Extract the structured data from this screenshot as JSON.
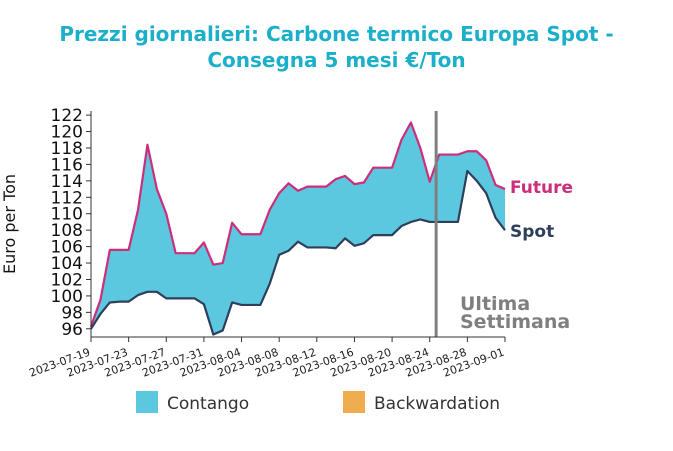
{
  "chart_data": {
    "type": "area",
    "title_line1": "Prezzi giornalieri: Carbone termico Europa Spot -",
    "title_line2": "Consegna 5 mesi €/Ton",
    "ylabel": "Euro per Ton",
    "xlabel": "",
    "ylim": [
      95,
      122.5
    ],
    "yticks": [
      96,
      98,
      100,
      102,
      104,
      106,
      108,
      110,
      112,
      114,
      116,
      118,
      120,
      122
    ],
    "xlim": [
      "2023-07-19",
      "2023-09-01"
    ],
    "xticks": [
      "2023-07-19",
      "2023-07-23",
      "2023-07-27",
      "2023-07-31",
      "2023-08-04",
      "2023-08-08",
      "2023-08-12",
      "2023-08-16",
      "2023-08-20",
      "2023-08-24",
      "2023-08-28",
      "2023-09-01"
    ],
    "series": [
      {
        "name": "Future",
        "color": "#cc2e7a",
        "points": [
          [
            "2023-07-19",
            96.3
          ],
          [
            "2023-07-20",
            99.5
          ],
          [
            "2023-07-21",
            105.6
          ],
          [
            "2023-07-22",
            105.6
          ],
          [
            "2023-07-23",
            105.6
          ],
          [
            "2023-07-24",
            110.5
          ],
          [
            "2023-07-25",
            118.4
          ],
          [
            "2023-07-26",
            113.0
          ],
          [
            "2023-07-27",
            110.0
          ],
          [
            "2023-07-28",
            105.2
          ],
          [
            "2023-07-29",
            105.2
          ],
          [
            "2023-07-30",
            105.2
          ],
          [
            "2023-07-31",
            106.5
          ],
          [
            "2023-08-01",
            103.8
          ],
          [
            "2023-08-02",
            104.0
          ],
          [
            "2023-08-03",
            108.9
          ],
          [
            "2023-08-04",
            107.5
          ],
          [
            "2023-08-05",
            107.5
          ],
          [
            "2023-08-06",
            107.5
          ],
          [
            "2023-08-07",
            110.5
          ],
          [
            "2023-08-08",
            112.5
          ],
          [
            "2023-08-09",
            113.7
          ],
          [
            "2023-08-10",
            112.8
          ],
          [
            "2023-08-11",
            113.3
          ],
          [
            "2023-08-12",
            113.3
          ],
          [
            "2023-08-13",
            113.3
          ],
          [
            "2023-08-14",
            114.2
          ],
          [
            "2023-08-15",
            114.6
          ],
          [
            "2023-08-16",
            113.6
          ],
          [
            "2023-08-17",
            113.8
          ],
          [
            "2023-08-18",
            115.6
          ],
          [
            "2023-08-19",
            115.6
          ],
          [
            "2023-08-20",
            115.6
          ],
          [
            "2023-08-21",
            119.0
          ],
          [
            "2023-08-22",
            121.1
          ],
          [
            "2023-08-23",
            118.0
          ],
          [
            "2023-08-24",
            113.9
          ],
          [
            "2023-08-25",
            117.2
          ],
          [
            "2023-08-26",
            117.2
          ],
          [
            "2023-08-27",
            117.2
          ],
          [
            "2023-08-28",
            117.6
          ],
          [
            "2023-08-29",
            117.6
          ],
          [
            "2023-08-30",
            116.5
          ],
          [
            "2023-08-31",
            113.5
          ],
          [
            "2023-09-01",
            113.0
          ]
        ]
      },
      {
        "name": "Spot",
        "color": "#2e3f5c",
        "points": [
          [
            "2023-07-19",
            96.0
          ],
          [
            "2023-07-20",
            97.8
          ],
          [
            "2023-07-21",
            99.2
          ],
          [
            "2023-07-22",
            99.3
          ],
          [
            "2023-07-23",
            99.3
          ],
          [
            "2023-07-24",
            100.1
          ],
          [
            "2023-07-25",
            100.5
          ],
          [
            "2023-07-26",
            100.5
          ],
          [
            "2023-07-27",
            99.7
          ],
          [
            "2023-07-28",
            99.7
          ],
          [
            "2023-07-29",
            99.7
          ],
          [
            "2023-07-30",
            99.7
          ],
          [
            "2023-07-31",
            99.0
          ],
          [
            "2023-08-01",
            95.3
          ],
          [
            "2023-08-02",
            95.8
          ],
          [
            "2023-08-03",
            99.2
          ],
          [
            "2023-08-04",
            98.9
          ],
          [
            "2023-08-05",
            98.9
          ],
          [
            "2023-08-06",
            98.9
          ],
          [
            "2023-08-07",
            101.5
          ],
          [
            "2023-08-08",
            105.0
          ],
          [
            "2023-08-09",
            105.5
          ],
          [
            "2023-08-10",
            106.6
          ],
          [
            "2023-08-11",
            105.9
          ],
          [
            "2023-08-12",
            105.9
          ],
          [
            "2023-08-13",
            105.9
          ],
          [
            "2023-08-14",
            105.8
          ],
          [
            "2023-08-15",
            107.0
          ],
          [
            "2023-08-16",
            106.1
          ],
          [
            "2023-08-17",
            106.4
          ],
          [
            "2023-08-18",
            107.4
          ],
          [
            "2023-08-19",
            107.4
          ],
          [
            "2023-08-20",
            107.4
          ],
          [
            "2023-08-21",
            108.5
          ],
          [
            "2023-08-22",
            109.0
          ],
          [
            "2023-08-23",
            109.3
          ],
          [
            "2023-08-24",
            109.0
          ],
          [
            "2023-08-25",
            109.0
          ],
          [
            "2023-08-26",
            109.0
          ],
          [
            "2023-08-27",
            109.0
          ],
          [
            "2023-08-28",
            115.2
          ],
          [
            "2023-08-29",
            114.0
          ],
          [
            "2023-08-30",
            112.5
          ],
          [
            "2023-08-31",
            109.5
          ],
          [
            "2023-09-01",
            108.0
          ]
        ]
      }
    ],
    "fill_colors": {
      "contango": "#5bc8e0",
      "backwardation": "#f0ad4e"
    },
    "legend": [
      {
        "label": "Contango",
        "color": "#5bc8e0"
      },
      {
        "label": "Backwardation",
        "color": "#f0ad4e"
      }
    ],
    "legend_position": "bottom",
    "series_labels_position": "right",
    "annotation": {
      "line1": "Ultima",
      "line2": "Settimana",
      "date": "2023-08-25",
      "color": "#7f7f7f"
    },
    "title_color": "#1bafc9",
    "grid": false
  }
}
